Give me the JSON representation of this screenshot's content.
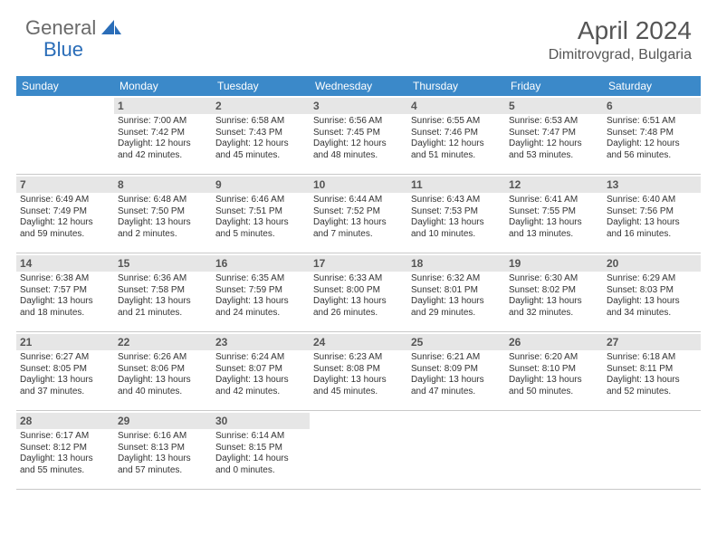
{
  "logo": {
    "text1": "General",
    "text2": "Blue",
    "shape_color": "#2a6db8"
  },
  "title": "April 2024",
  "location": "Dimitrovgrad, Bulgaria",
  "colors": {
    "header_bg": "#3b89c9",
    "header_text": "#ffffff",
    "daynum_bg": "#e6e6e6",
    "border": "#c9c9c9",
    "body_text": "#333333",
    "title_text": "#555555"
  },
  "dow": [
    "Sunday",
    "Monday",
    "Tuesday",
    "Wednesday",
    "Thursday",
    "Friday",
    "Saturday"
  ],
  "weeks": [
    [
      null,
      {
        "n": "1",
        "sr": "7:00 AM",
        "ss": "7:42 PM",
        "dl": "12 hours and 42 minutes."
      },
      {
        "n": "2",
        "sr": "6:58 AM",
        "ss": "7:43 PM",
        "dl": "12 hours and 45 minutes."
      },
      {
        "n": "3",
        "sr": "6:56 AM",
        "ss": "7:45 PM",
        "dl": "12 hours and 48 minutes."
      },
      {
        "n": "4",
        "sr": "6:55 AM",
        "ss": "7:46 PM",
        "dl": "12 hours and 51 minutes."
      },
      {
        "n": "5",
        "sr": "6:53 AM",
        "ss": "7:47 PM",
        "dl": "12 hours and 53 minutes."
      },
      {
        "n": "6",
        "sr": "6:51 AM",
        "ss": "7:48 PM",
        "dl": "12 hours and 56 minutes."
      }
    ],
    [
      {
        "n": "7",
        "sr": "6:49 AM",
        "ss": "7:49 PM",
        "dl": "12 hours and 59 minutes."
      },
      {
        "n": "8",
        "sr": "6:48 AM",
        "ss": "7:50 PM",
        "dl": "13 hours and 2 minutes."
      },
      {
        "n": "9",
        "sr": "6:46 AM",
        "ss": "7:51 PM",
        "dl": "13 hours and 5 minutes."
      },
      {
        "n": "10",
        "sr": "6:44 AM",
        "ss": "7:52 PM",
        "dl": "13 hours and 7 minutes."
      },
      {
        "n": "11",
        "sr": "6:43 AM",
        "ss": "7:53 PM",
        "dl": "13 hours and 10 minutes."
      },
      {
        "n": "12",
        "sr": "6:41 AM",
        "ss": "7:55 PM",
        "dl": "13 hours and 13 minutes."
      },
      {
        "n": "13",
        "sr": "6:40 AM",
        "ss": "7:56 PM",
        "dl": "13 hours and 16 minutes."
      }
    ],
    [
      {
        "n": "14",
        "sr": "6:38 AM",
        "ss": "7:57 PM",
        "dl": "13 hours and 18 minutes."
      },
      {
        "n": "15",
        "sr": "6:36 AM",
        "ss": "7:58 PM",
        "dl": "13 hours and 21 minutes."
      },
      {
        "n": "16",
        "sr": "6:35 AM",
        "ss": "7:59 PM",
        "dl": "13 hours and 24 minutes."
      },
      {
        "n": "17",
        "sr": "6:33 AM",
        "ss": "8:00 PM",
        "dl": "13 hours and 26 minutes."
      },
      {
        "n": "18",
        "sr": "6:32 AM",
        "ss": "8:01 PM",
        "dl": "13 hours and 29 minutes."
      },
      {
        "n": "19",
        "sr": "6:30 AM",
        "ss": "8:02 PM",
        "dl": "13 hours and 32 minutes."
      },
      {
        "n": "20",
        "sr": "6:29 AM",
        "ss": "8:03 PM",
        "dl": "13 hours and 34 minutes."
      }
    ],
    [
      {
        "n": "21",
        "sr": "6:27 AM",
        "ss": "8:05 PM",
        "dl": "13 hours and 37 minutes."
      },
      {
        "n": "22",
        "sr": "6:26 AM",
        "ss": "8:06 PM",
        "dl": "13 hours and 40 minutes."
      },
      {
        "n": "23",
        "sr": "6:24 AM",
        "ss": "8:07 PM",
        "dl": "13 hours and 42 minutes."
      },
      {
        "n": "24",
        "sr": "6:23 AM",
        "ss": "8:08 PM",
        "dl": "13 hours and 45 minutes."
      },
      {
        "n": "25",
        "sr": "6:21 AM",
        "ss": "8:09 PM",
        "dl": "13 hours and 47 minutes."
      },
      {
        "n": "26",
        "sr": "6:20 AM",
        "ss": "8:10 PM",
        "dl": "13 hours and 50 minutes."
      },
      {
        "n": "27",
        "sr": "6:18 AM",
        "ss": "8:11 PM",
        "dl": "13 hours and 52 minutes."
      }
    ],
    [
      {
        "n": "28",
        "sr": "6:17 AM",
        "ss": "8:12 PM",
        "dl": "13 hours and 55 minutes."
      },
      {
        "n": "29",
        "sr": "6:16 AM",
        "ss": "8:13 PM",
        "dl": "13 hours and 57 minutes."
      },
      {
        "n": "30",
        "sr": "6:14 AM",
        "ss": "8:15 PM",
        "dl": "14 hours and 0 minutes."
      },
      null,
      null,
      null,
      null
    ]
  ],
  "labels": {
    "sunrise": "Sunrise: ",
    "sunset": "Sunset: ",
    "daylight": "Daylight: "
  }
}
